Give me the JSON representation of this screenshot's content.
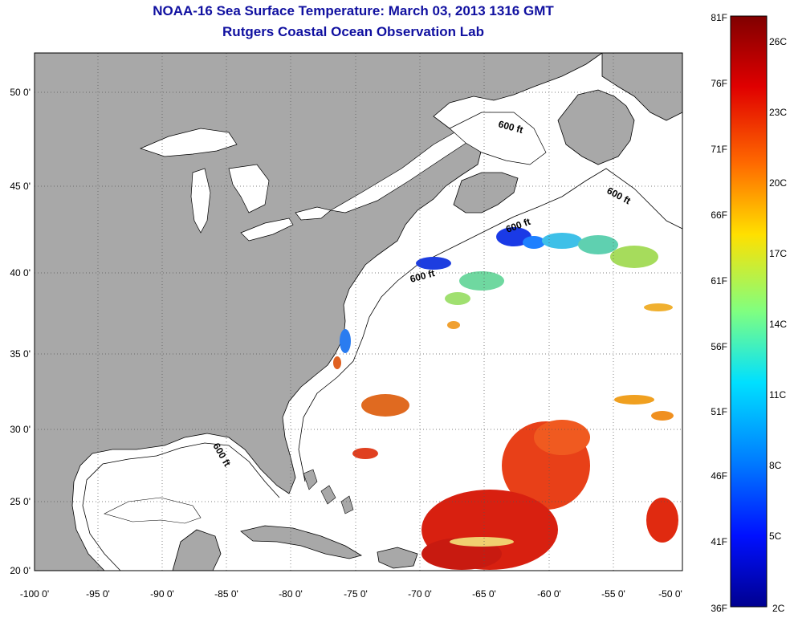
{
  "title": {
    "line1": "NOAA-16 Sea Surface Temperature:  March 03, 2013 1316 GMT",
    "line2": "Rutgers Coastal Ocean Observation Lab"
  },
  "map": {
    "lon_ticks": [
      "-100 0'",
      "-95 0'",
      "-90 0'",
      "-85 0'",
      "-80 0'",
      "-75 0'",
      "-70 0'",
      "-65 0'",
      "-60 0'",
      "-55 0'",
      "-50 0'"
    ],
    "lat_ticks": [
      "50 0'",
      "45 0'",
      "40 0'",
      "35 0'",
      "30 0'",
      "25 0'",
      "20 0'"
    ],
    "contour_labels": [
      "600 ft",
      "600 ft",
      "600 ft",
      "600 ft",
      "600 ft"
    ],
    "colors": {
      "land": "#a8a8a8",
      "water": "#ffffff",
      "grid": "#555555"
    }
  },
  "colorbar": {
    "f_labels": [
      "81F",
      "76F",
      "71F",
      "66F",
      "61F",
      "56F",
      "51F",
      "46F",
      "41F",
      "36F"
    ],
    "c_labels": [
      "26C",
      "23C",
      "20C",
      "17C",
      "14C",
      "11C",
      "8C",
      "5C",
      "2C"
    ]
  }
}
